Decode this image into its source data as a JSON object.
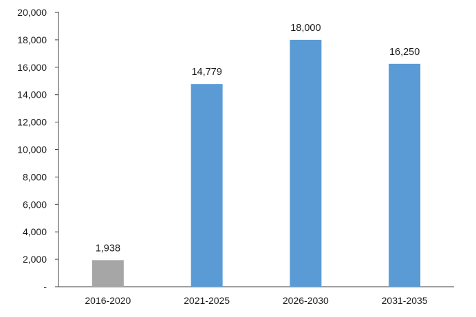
{
  "chart_data": {
    "type": "bar",
    "title": "",
    "xlabel": "",
    "ylabel": "",
    "categories": [
      "2016-2020",
      "2021-2025",
      "2026-2030",
      "2031-2035"
    ],
    "values": [
      1938,
      14779,
      18000,
      16250
    ],
    "data_labels": [
      "1,938",
      "14,779",
      "18,000",
      "16,250"
    ],
    "bar_colors": [
      "#a6a6a6",
      "#5b9bd5",
      "#5b9bd5",
      "#5b9bd5"
    ],
    "ylim": [
      0,
      20000
    ],
    "y_ticks": [
      0,
      2000,
      4000,
      6000,
      8000,
      10000,
      12000,
      14000,
      16000,
      18000,
      20000
    ],
    "y_tick_labels": [
      "-",
      "2,000",
      "4,000",
      "6,000",
      "8,000",
      "10,000",
      "12,000",
      "14,000",
      "16,000",
      "18,000",
      "20,000"
    ],
    "grid": false,
    "legend": "none"
  }
}
